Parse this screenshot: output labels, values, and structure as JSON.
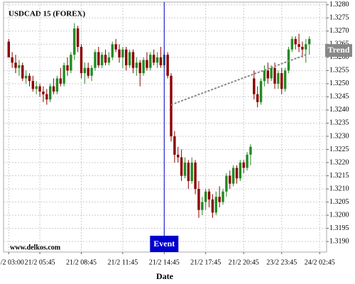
{
  "chart_data": {
    "type": "candlestick",
    "title": "USDCAD 15 (FOREX)",
    "x_label": "Date",
    "watermark": "www.delkos.com",
    "up_color": "#228b22",
    "down_color": "#8b0000",
    "grid": true,
    "ylim": [
      1.3186,
      1.3281
    ],
    "yticks": [
      {
        "value": 1.319,
        "label": "1.3190"
      },
      1.3195,
      {
        "value": 1.32,
        "label": "1.3200"
      },
      1.3205,
      {
        "value": 1.321,
        "label": "1.3210"
      },
      1.3215,
      {
        "value": 1.322,
        "label": "1.3220"
      },
      1.3225,
      {
        "value": 1.323,
        "label": "1.3230"
      },
      1.3235,
      {
        "value": 1.324,
        "label": "1.3240"
      },
      1.3245,
      {
        "value": 1.325,
        "label": "1.3250"
      },
      1.3255,
      {
        "value": 1.326,
        "label": "1.3260"
      },
      1.3265,
      {
        "value": 1.327,
        "label": "1.3270"
      },
      1.3275,
      {
        "value": 1.328,
        "label": "1.3280"
      }
    ],
    "xlim": [
      -1.5,
      92
    ],
    "xticks": [
      {
        "value": 0,
        "label": "21/2 03:00"
      },
      {
        "value": 9,
        "label": "21/2 05:45"
      },
      {
        "value": 21,
        "label": "21/2 08:45"
      },
      {
        "value": 33,
        "label": "21/2 11:45"
      },
      {
        "value": 45,
        "label": "21/2 14:45"
      },
      {
        "value": 57,
        "label": "21/2 17:45"
      },
      {
        "value": 68,
        "label": "21/2 20:45"
      },
      {
        "value": 79,
        "label": "23/2 23:45"
      },
      {
        "value": 90,
        "label": "24/2 02:45"
      }
    ],
    "event": {
      "index": 45,
      "label": "Event",
      "color": "#0000cc"
    },
    "trend": {
      "x": [
        47,
        86
      ],
      "y": [
        1.3242,
        1.3261
      ],
      "label": "Trend",
      "color": "#888888"
    },
    "candles": [
      [
        1.3266,
        1.3267,
        1.326,
        1.326
      ],
      [
        1.326,
        1.3262,
        1.3256,
        1.3258
      ],
      [
        1.3258,
        1.3261,
        1.3254,
        1.3256
      ],
      [
        1.3256,
        1.3259,
        1.3253,
        1.3257
      ],
      [
        1.3257,
        1.3258,
        1.3251,
        1.3252
      ],
      [
        1.3252,
        1.3255,
        1.325,
        1.3253
      ],
      [
        1.3253,
        1.3254,
        1.3249,
        1.3251
      ],
      [
        1.3251,
        1.3253,
        1.3247,
        1.3248
      ],
      [
        1.3248,
        1.3251,
        1.3246,
        1.3249
      ],
      [
        1.3249,
        1.325,
        1.3245,
        1.3247
      ],
      [
        1.3247,
        1.3249,
        1.3243,
        1.3246
      ],
      [
        1.3246,
        1.3248,
        1.3242,
        1.3244
      ],
      [
        1.3244,
        1.325,
        1.3243,
        1.3249
      ],
      [
        1.3249,
        1.3252,
        1.3246,
        1.3247
      ],
      [
        1.3247,
        1.3253,
        1.3246,
        1.3252
      ],
      [
        1.3252,
        1.3256,
        1.3249,
        1.325
      ],
      [
        1.325,
        1.3258,
        1.3249,
        1.3257
      ],
      [
        1.3257,
        1.326,
        1.3253,
        1.3255
      ],
      [
        1.3255,
        1.3262,
        1.3254,
        1.3261
      ],
      [
        1.3261,
        1.3273,
        1.3259,
        1.3271
      ],
      [
        1.3271,
        1.3272,
        1.3262,
        1.3264
      ],
      [
        1.3264,
        1.3265,
        1.3252,
        1.3254
      ],
      [
        1.3254,
        1.3258,
        1.325,
        1.3256
      ],
      [
        1.3256,
        1.3258,
        1.3252,
        1.3253
      ],
      [
        1.3253,
        1.3257,
        1.3251,
        1.3256
      ],
      [
        1.3256,
        1.3263,
        1.3255,
        1.3262
      ],
      [
        1.3262,
        1.3264,
        1.3256,
        1.3257
      ],
      [
        1.3257,
        1.3262,
        1.3256,
        1.3261
      ],
      [
        1.3261,
        1.3263,
        1.3257,
        1.3258
      ],
      [
        1.3258,
        1.3262,
        1.3257,
        1.326
      ],
      [
        1.326,
        1.3266,
        1.3259,
        1.3265
      ],
      [
        1.3265,
        1.3267,
        1.3262,
        1.3263
      ],
      [
        1.3263,
        1.3265,
        1.3258,
        1.326
      ],
      [
        1.326,
        1.3264,
        1.3256,
        1.3263
      ],
      [
        1.3263,
        1.3264,
        1.3255,
        1.3257
      ],
      [
        1.3257,
        1.3263,
        1.3256,
        1.3262
      ],
      [
        1.3262,
        1.3263,
        1.3254,
        1.3256
      ],
      [
        1.3256,
        1.326,
        1.3253,
        1.3258
      ],
      [
        1.3258,
        1.3259,
        1.3249,
        1.3254
      ],
      [
        1.3254,
        1.326,
        1.3253,
        1.3259
      ],
      [
        1.3259,
        1.3262,
        1.3255,
        1.3256
      ],
      [
        1.3256,
        1.3262,
        1.3255,
        1.3261
      ],
      [
        1.3261,
        1.3263,
        1.3257,
        1.3258
      ],
      [
        1.3258,
        1.3262,
        1.3256,
        1.326
      ],
      [
        1.326,
        1.3264,
        1.3256,
        1.3257
      ],
      [
        1.3257,
        1.3262,
        1.3256,
        1.3261
      ],
      [
        1.3261,
        1.3262,
        1.3252,
        1.3253
      ],
      [
        1.3253,
        1.3254,
        1.3228,
        1.323
      ],
      [
        1.323,
        1.3232,
        1.322,
        1.3223
      ],
      [
        1.3223,
        1.3226,
        1.322,
        1.3222
      ],
      [
        1.3222,
        1.3225,
        1.3213,
        1.3215
      ],
      [
        1.3215,
        1.3222,
        1.3214,
        1.322
      ],
      [
        1.322,
        1.3221,
        1.321,
        1.3213
      ],
      [
        1.3213,
        1.3222,
        1.3212,
        1.322
      ],
      [
        1.322,
        1.3221,
        1.3208,
        1.321
      ],
      [
        1.321,
        1.3213,
        1.3199,
        1.3202
      ],
      [
        1.3202,
        1.3207,
        1.32,
        1.3205
      ],
      [
        1.3205,
        1.321,
        1.3202,
        1.3209
      ],
      [
        1.3209,
        1.321,
        1.3203,
        1.3206
      ],
      [
        1.3206,
        1.3208,
        1.3199,
        1.3201
      ],
      [
        1.3201,
        1.3209,
        1.32,
        1.3207
      ],
      [
        1.3207,
        1.3211,
        1.3203,
        1.3205
      ],
      [
        1.3205,
        1.321,
        1.3204,
        1.3209
      ],
      [
        1.3209,
        1.3216,
        1.3207,
        1.3215
      ],
      [
        1.3215,
        1.3217,
        1.321,
        1.3212
      ],
      [
        1.3212,
        1.3219,
        1.3211,
        1.3218
      ],
      [
        1.3218,
        1.3219,
        1.3212,
        1.3214
      ],
      [
        1.3214,
        1.3221,
        1.3213,
        1.322
      ],
      [
        1.322,
        1.3221,
        1.3216,
        1.3218
      ],
      [
        1.3218,
        1.3224,
        1.3217,
        1.3223
      ],
      [
        1.3223,
        1.3227,
        1.3219,
        1.3226
      ],
      [
        1.3252,
        1.3255,
        1.3244,
        1.3246
      ],
      [
        1.3246,
        1.3249,
        1.3241,
        1.3243
      ],
      [
        1.3243,
        1.3252,
        1.3242,
        1.3251
      ],
      [
        1.3251,
        1.3257,
        1.3249,
        1.3255
      ],
      [
        1.3255,
        1.3258,
        1.325,
        1.3252
      ],
      [
        1.3252,
        1.3257,
        1.3251,
        1.3256
      ],
      [
        1.3256,
        1.3258,
        1.3248,
        1.325
      ],
      [
        1.325,
        1.3255,
        1.3248,
        1.3254
      ],
      [
        1.3254,
        1.3256,
        1.3246,
        1.3248
      ],
      [
        1.3248,
        1.3256,
        1.3247,
        1.3255
      ],
      [
        1.3255,
        1.3264,
        1.3254,
        1.3263
      ],
      [
        1.3263,
        1.3268,
        1.3262,
        1.3267
      ],
      [
        1.3267,
        1.3268,
        1.3263,
        1.3265
      ],
      [
        1.3265,
        1.3269,
        1.3262,
        1.3264
      ],
      [
        1.3264,
        1.3266,
        1.326,
        1.3263
      ],
      [
        1.3263,
        1.3267,
        1.3258,
        1.3265
      ],
      [
        1.3265,
        1.3268,
        1.3261,
        1.3267
      ]
    ]
  }
}
